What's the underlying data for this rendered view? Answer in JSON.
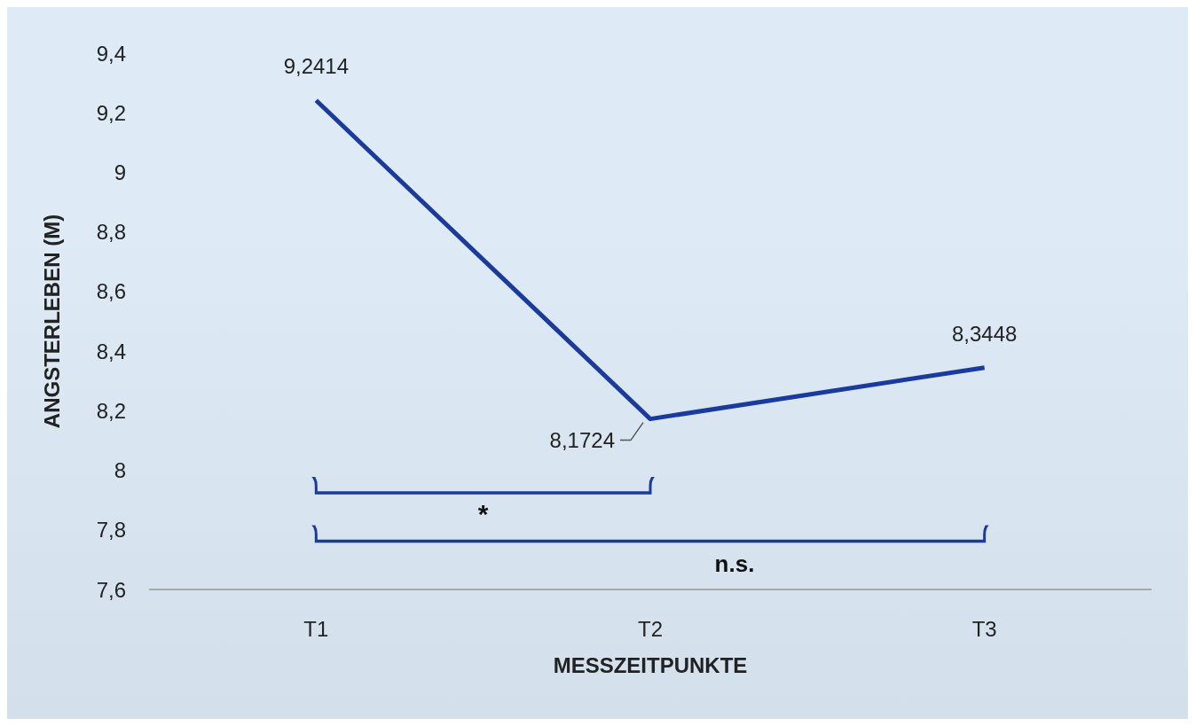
{
  "chart_data": {
    "type": "line",
    "xlabel": "MESSZEITPUNKTE",
    "ylabel": "ANGSTERLEBEN (M)",
    "categories": [
      "T1",
      "T2",
      "T3"
    ],
    "series": [
      {
        "color": "#1a3a9c",
        "values": [
          9.2414,
          8.1724,
          8.3448
        ],
        "value_labels": [
          "9,2414",
          "8,1724",
          "8,3448"
        ]
      }
    ],
    "marker": "none",
    "legend": false,
    "grid": false,
    "ylim": [
      7.6,
      9.4
    ],
    "yticks": [
      {
        "value": 7.6,
        "label": "7,6"
      },
      {
        "value": 7.8,
        "label": "7,8"
      },
      8,
      {
        "value": 8.2,
        "label": "8,2"
      },
      {
        "value": 8.4,
        "label": "8,4"
      },
      {
        "value": 8.6,
        "label": "8,6"
      },
      {
        "value": 8.8,
        "label": "8,8"
      },
      9,
      {
        "value": 9.2,
        "label": "9,2"
      },
      {
        "value": 9.4,
        "label": "9,4"
      }
    ],
    "annotations": [
      "*",
      "n.s."
    ]
  }
}
